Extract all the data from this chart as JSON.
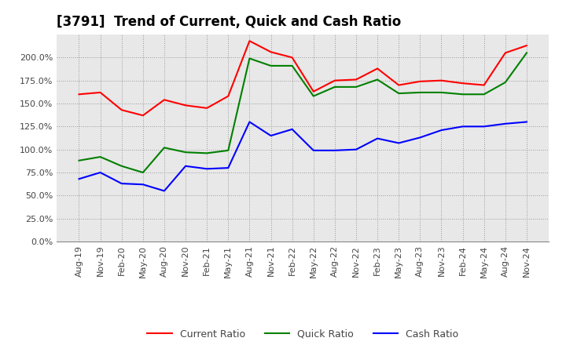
{
  "title": "[3791]  Trend of Current, Quick and Cash Ratio",
  "x_labels": [
    "Aug-19",
    "Nov-19",
    "Feb-20",
    "May-20",
    "Aug-20",
    "Nov-20",
    "Feb-21",
    "May-21",
    "Aug-21",
    "Nov-21",
    "Feb-22",
    "May-22",
    "Aug-22",
    "Nov-22",
    "Feb-23",
    "May-23",
    "Aug-23",
    "Nov-23",
    "Feb-24",
    "May-24",
    "Aug-24",
    "Nov-24"
  ],
  "current_ratio": [
    160,
    162,
    143,
    137,
    154,
    148,
    145,
    158,
    218,
    206,
    200,
    163,
    175,
    176,
    188,
    170,
    174,
    175,
    172,
    170,
    205,
    213
  ],
  "quick_ratio": [
    88,
    92,
    82,
    75,
    102,
    97,
    96,
    99,
    199,
    191,
    191,
    158,
    168,
    168,
    176,
    161,
    162,
    162,
    160,
    160,
    173,
    205
  ],
  "cash_ratio": [
    68,
    75,
    63,
    62,
    55,
    82,
    79,
    80,
    130,
    115,
    122,
    99,
    99,
    100,
    112,
    107,
    113,
    121,
    125,
    125,
    128,
    130
  ],
  "ylim": [
    0,
    225
  ],
  "yticks": [
    0,
    25,
    50,
    75,
    100,
    125,
    150,
    175,
    200
  ],
  "current_color": "#ff0000",
  "quick_color": "#008000",
  "cash_color": "#0000ff",
  "bg_color": "#e8e8e8",
  "grid_color": "#999999",
  "title_fontsize": 12,
  "tick_fontsize": 8,
  "legend_fontsize": 9
}
